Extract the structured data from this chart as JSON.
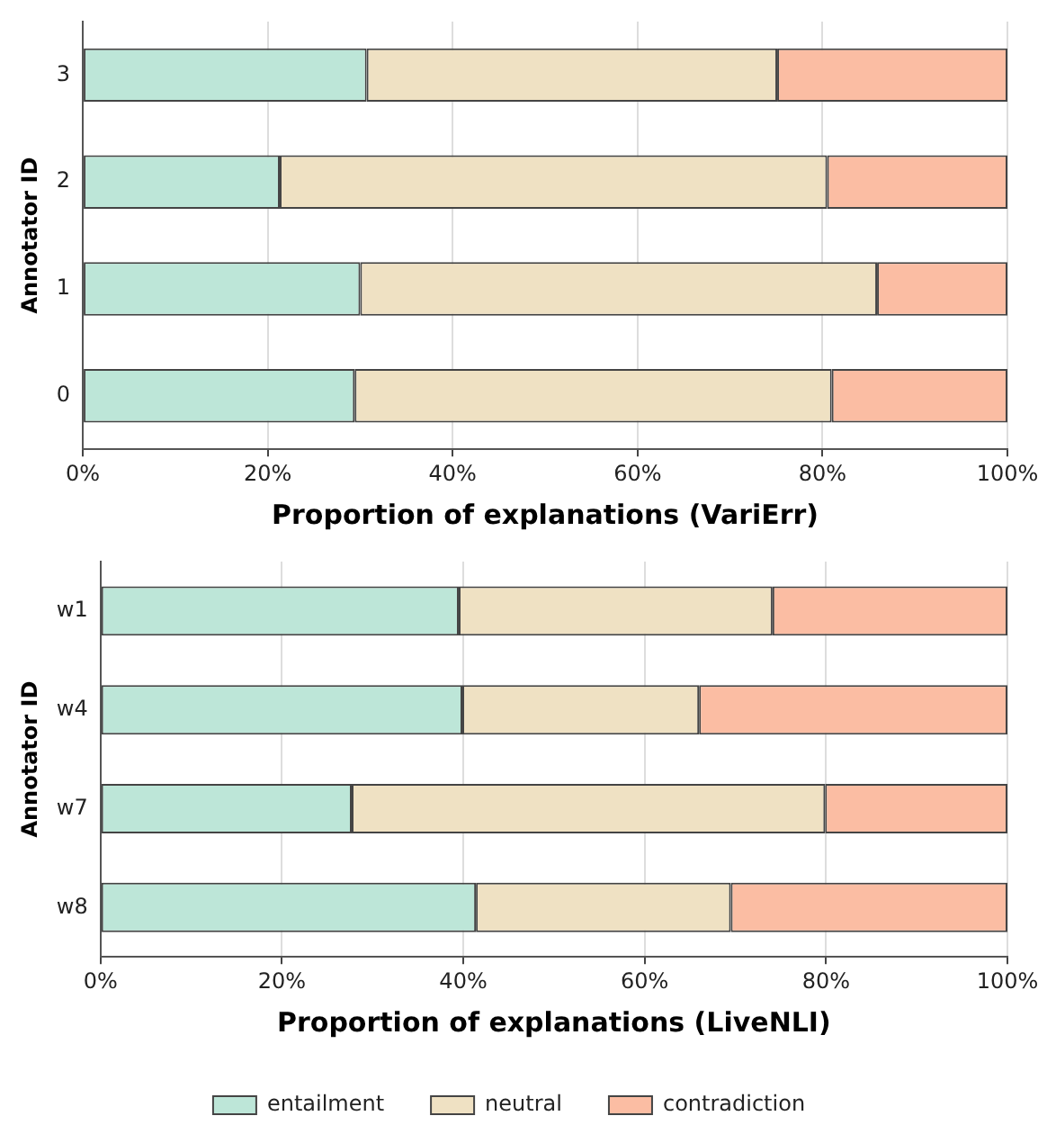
{
  "chart_data": [
    {
      "type": "bar",
      "orientation": "horizontal",
      "stacked": true,
      "xlabel": "Proportion of explanations (VariErr)",
      "ylabel": "Annotator ID",
      "categories": [
        "3",
        "2",
        "1",
        "0"
      ],
      "series": [
        {
          "color": "#bde6d8",
          "values": [
            30.7,
            21.3,
            30.0,
            29.4
          ]
        },
        {
          "color": "#efe1c3",
          "values": [
            44.4,
            59.2,
            55.9,
            51.6
          ]
        },
        {
          "color": "#fbbda3",
          "values": [
            24.9,
            19.5,
            14.1,
            19.0
          ]
        }
      ],
      "xlim": [
        0,
        100
      ],
      "xticks": [
        {
          "value": 0,
          "label": "0%"
        },
        {
          "value": 20,
          "label": "20%"
        },
        {
          "value": 40,
          "label": "40%"
        },
        {
          "value": 60,
          "label": "60%"
        },
        {
          "value": 80,
          "label": "80%"
        },
        {
          "value": 100,
          "label": "100%"
        }
      ],
      "grid": "x",
      "legend": false
    },
    {
      "type": "bar",
      "orientation": "horizontal",
      "stacked": true,
      "xlabel": "Proportion of explanations (LiveNLI)",
      "ylabel": "Annotator ID",
      "categories": [
        "w1",
        "w4",
        "w7",
        "w8"
      ],
      "series": [
        {
          "name": "entailment",
          "color": "#bde6d8",
          "values": [
            39.5,
            39.9,
            27.7,
            41.4
          ]
        },
        {
          "name": "neutral",
          "color": "#efe1c3",
          "values": [
            34.6,
            26.1,
            52.2,
            28.1
          ]
        },
        {
          "name": "contradiction",
          "color": "#fbbda3",
          "values": [
            25.9,
            34.0,
            20.1,
            30.5
          ]
        }
      ],
      "xlim": [
        0,
        100
      ],
      "xticks": [
        {
          "value": 0,
          "label": "0%"
        },
        {
          "value": 20,
          "label": "20%"
        },
        {
          "value": 40,
          "label": "40%"
        },
        {
          "value": 60,
          "label": "60%"
        },
        {
          "value": 80,
          "label": "80%"
        },
        {
          "value": 100,
          "label": "100%"
        }
      ],
      "grid": "x",
      "legend": "bottom"
    }
  ]
}
